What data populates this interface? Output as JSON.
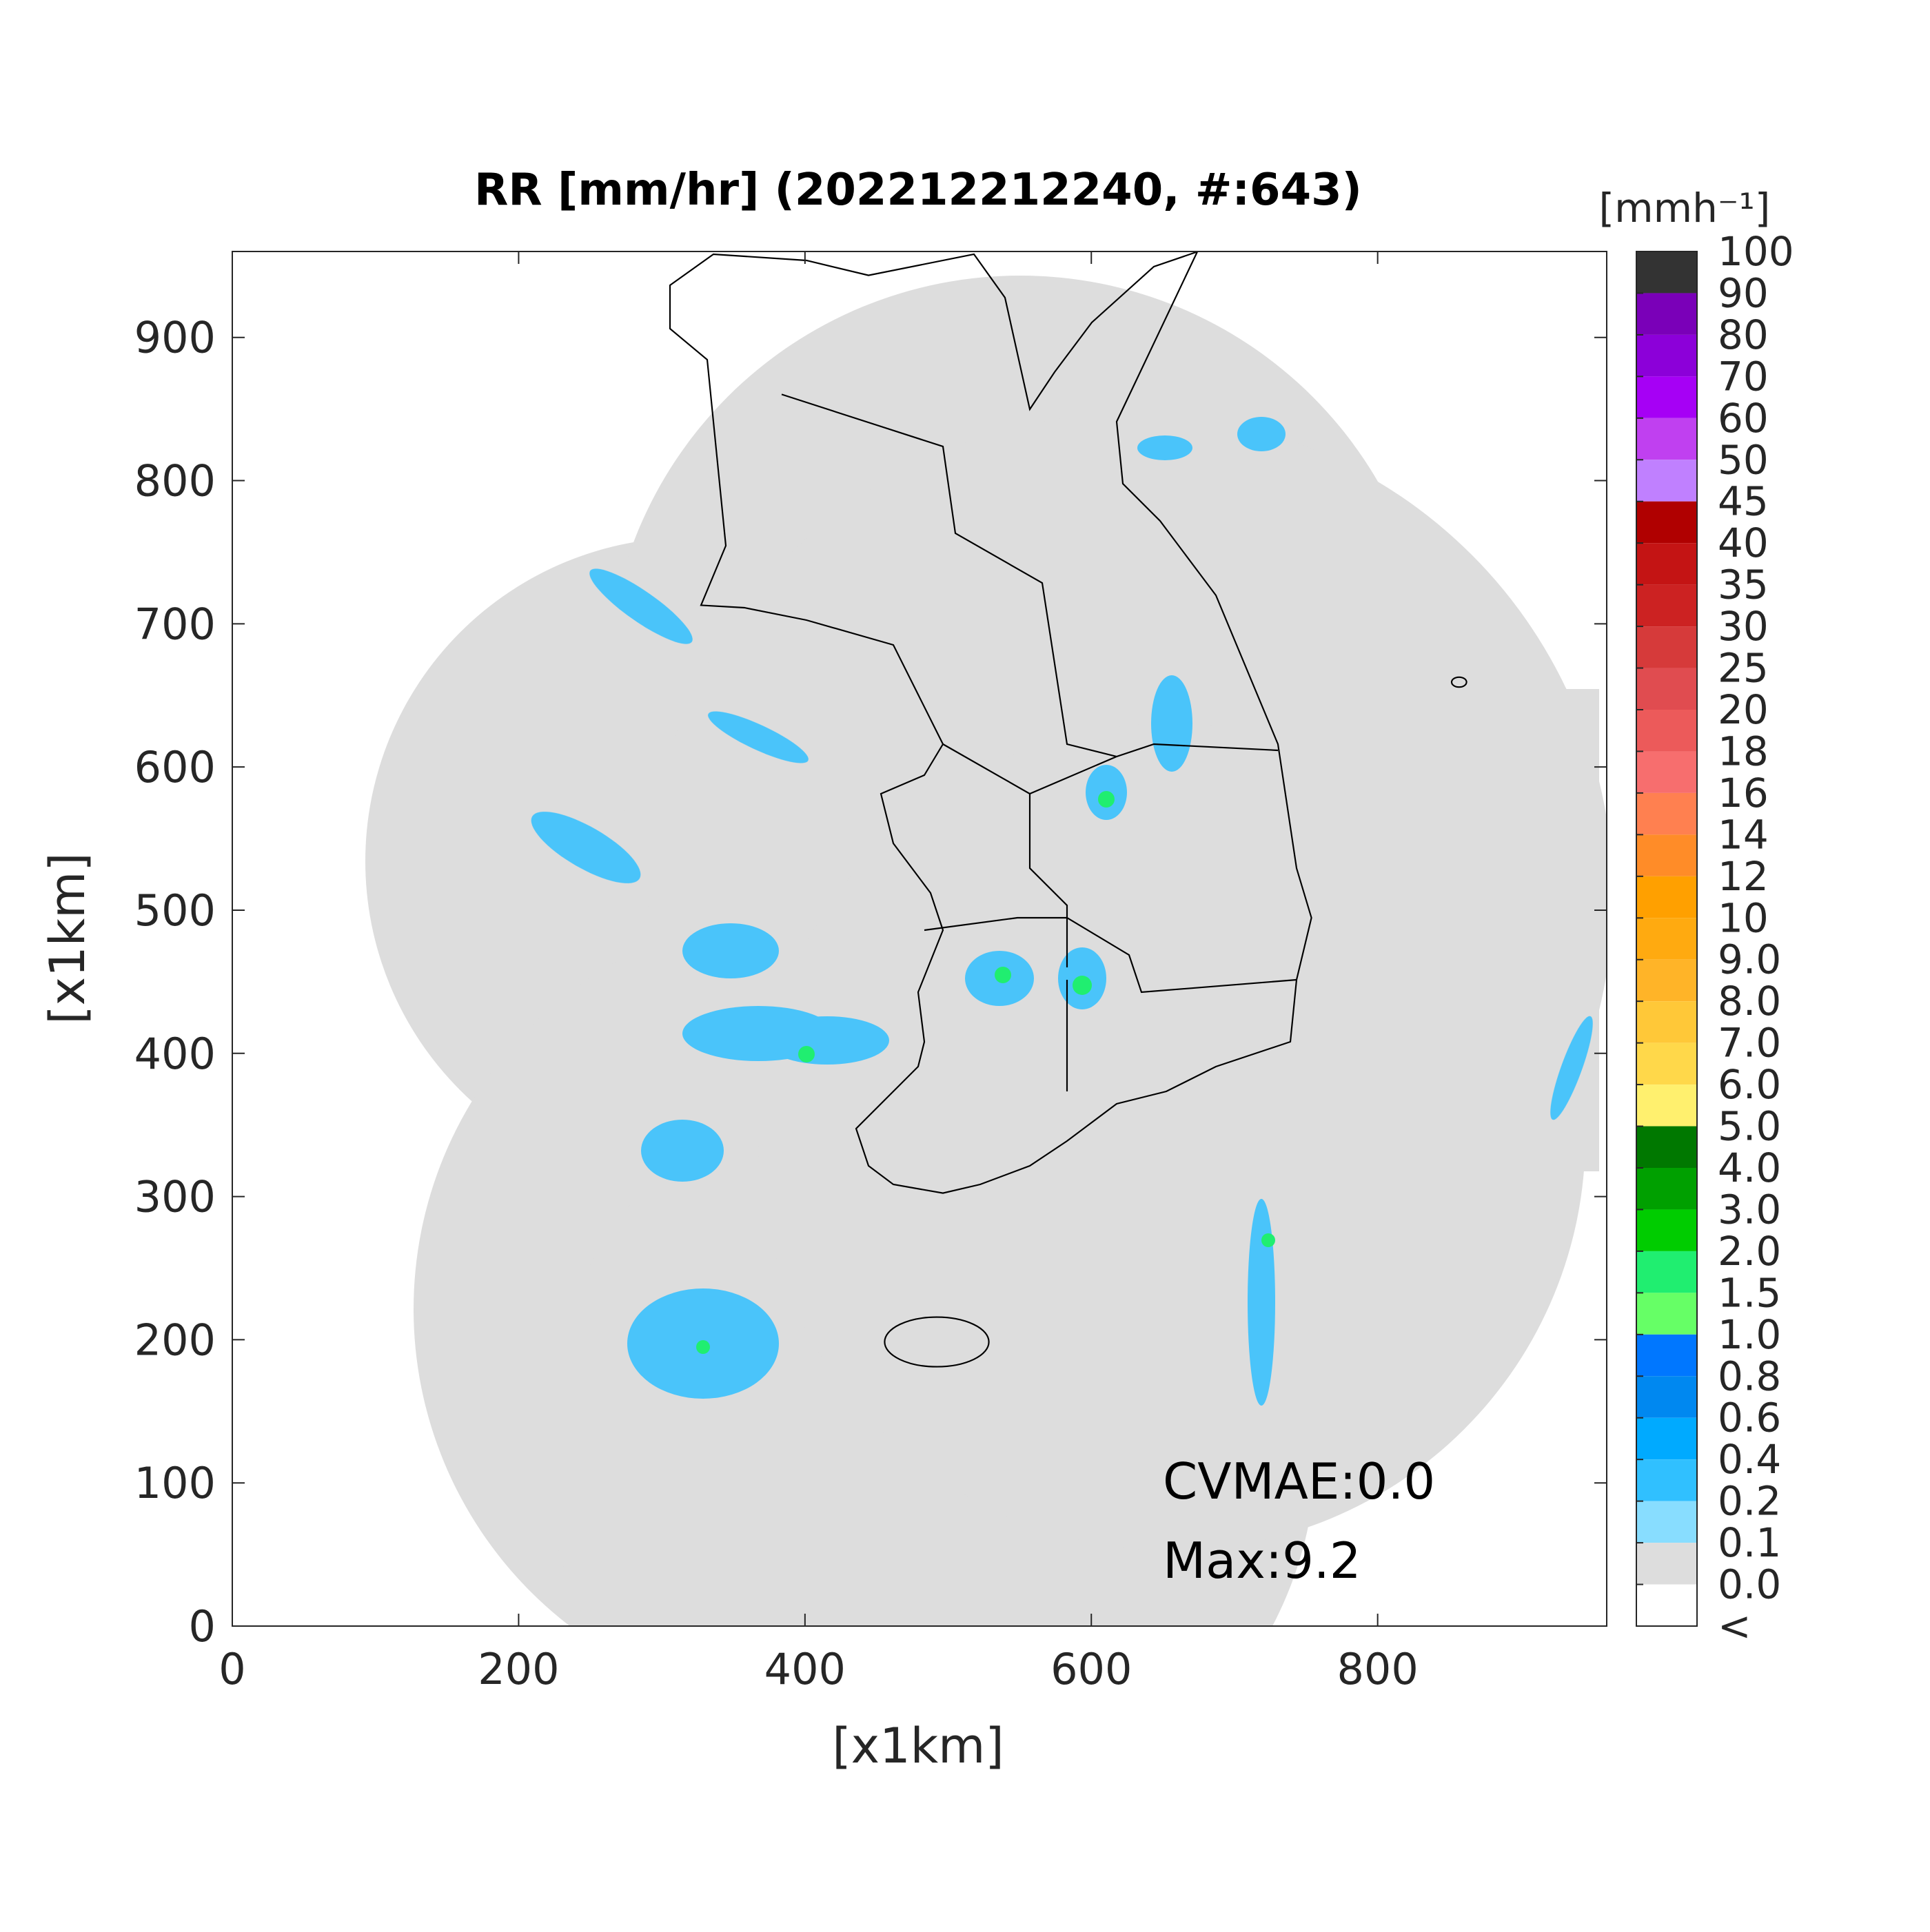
{
  "chart_data": {
    "type": "map",
    "title": "RR [mm/hr] (202212212240, #:643)",
    "xlabel": "[x1km]",
    "ylabel": "[x1km]",
    "xlim": [
      0,
      960
    ],
    "ylim": [
      0,
      960
    ],
    "xticks": [
      0,
      200,
      400,
      600,
      800
    ],
    "yticks": [
      0,
      100,
      200,
      300,
      400,
      500,
      600,
      700,
      800,
      900
    ],
    "annotations": [
      "CVMAE:0.0",
      "Max:9.2"
    ],
    "colorbar": {
      "label": "[mmh⁻¹]",
      "levels": [
        100,
        90,
        80,
        70,
        60,
        50,
        45,
        40,
        35,
        30,
        25,
        20,
        18,
        16,
        14,
        12,
        10,
        {
          "value": 9,
          "label": "9.0"
        },
        {
          "value": 8,
          "label": "8.0"
        },
        {
          "value": 7,
          "label": "7.0"
        },
        {
          "value": 6,
          "label": "6.0"
        },
        {
          "value": 5,
          "label": "5.0"
        },
        {
          "value": 4,
          "label": "4.0"
        },
        {
          "value": 3,
          "label": "3.0"
        },
        {
          "value": 2,
          "label": "2.0"
        },
        1.5,
        {
          "value": 1,
          "label": "1.0"
        },
        0.8,
        0.6,
        0.4,
        0.2,
        0.1,
        {
          "value": 0,
          "label": "0.0"
        }
      ],
      "colors": [
        "#333333",
        "#7a00b8",
        "#8c00d9",
        "#a600f5",
        "#c040f0",
        "#c080ff",
        "#b00000",
        "#c41414",
        "#cc2222",
        "#d63a3a",
        "#e04c50",
        "#ec5a5a",
        "#f76e6e",
        "#ff8050",
        "#ff8c28",
        "#ffa000",
        "#ffaa10",
        "#ffb428",
        "#ffc838",
        "#ffd84a",
        "#fff06e",
        "#007800",
        "#00a000",
        "#00cc00",
        "#20ee70",
        "#66ff66",
        "#0077ff",
        "#0088f0",
        "#00aaff",
        "#30c0ff",
        "#88ddff",
        "#dddddd"
      ],
      "under_label": "<",
      "under_color": "#ffffff"
    }
  }
}
